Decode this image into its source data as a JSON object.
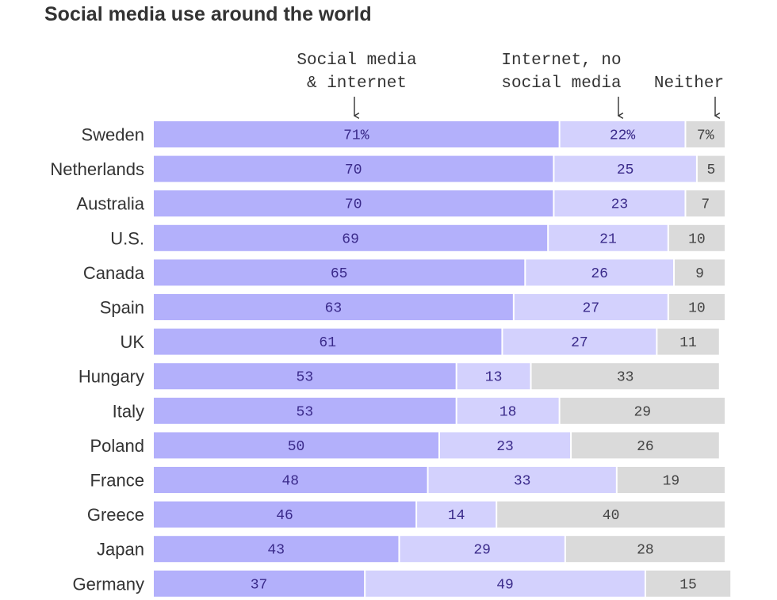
{
  "chart_data": {
    "type": "bar",
    "orientation": "horizontal",
    "stacked": true,
    "title": "Social media use around the world",
    "categories": [
      "Sweden",
      "Netherlands",
      "Australia",
      "U.S.",
      "Canada",
      "Spain",
      "UK",
      "Hungary",
      "Italy",
      "Poland",
      "France",
      "Greece",
      "Japan",
      "Germany"
    ],
    "series": [
      {
        "name": "Social media & internet",
        "header_lines": [
          "Social media",
          "& internet"
        ],
        "color": "#b3b0fb",
        "text_color": "#3a2a8a",
        "values": [
          71,
          70,
          70,
          69,
          65,
          63,
          61,
          53,
          53,
          50,
          48,
          46,
          43,
          37
        ],
        "labels": [
          "71%",
          "70",
          "70",
          "69",
          "65",
          "63",
          "61",
          "53",
          "53",
          "50",
          "48",
          "46",
          "43",
          "37"
        ]
      },
      {
        "name": "Internet, no social media",
        "header_lines": [
          "Internet, no",
          "social media"
        ],
        "color": "#d3d1fd",
        "text_color": "#3a2a8a",
        "values": [
          22,
          25,
          23,
          21,
          26,
          27,
          27,
          13,
          18,
          23,
          33,
          14,
          29,
          49
        ],
        "labels": [
          "22%",
          "25",
          "23",
          "21",
          "26",
          "27",
          "27",
          "13",
          "18",
          "23",
          "33",
          "14",
          "29",
          "49"
        ]
      },
      {
        "name": "Neither",
        "header_lines": [
          "Neither"
        ],
        "color": "#dadada",
        "text_color": "#444444",
        "values": [
          7,
          5,
          7,
          10,
          9,
          10,
          11,
          33,
          29,
          26,
          19,
          40,
          28,
          15
        ],
        "labels": [
          "7%",
          "5",
          "7",
          "10",
          "9",
          "10",
          "11",
          "33",
          "29",
          "26",
          "19",
          "40",
          "28",
          "15"
        ]
      }
    ],
    "xlim": [
      0,
      100
    ],
    "grid": false,
    "legend": "column headers with arrows above bars"
  }
}
